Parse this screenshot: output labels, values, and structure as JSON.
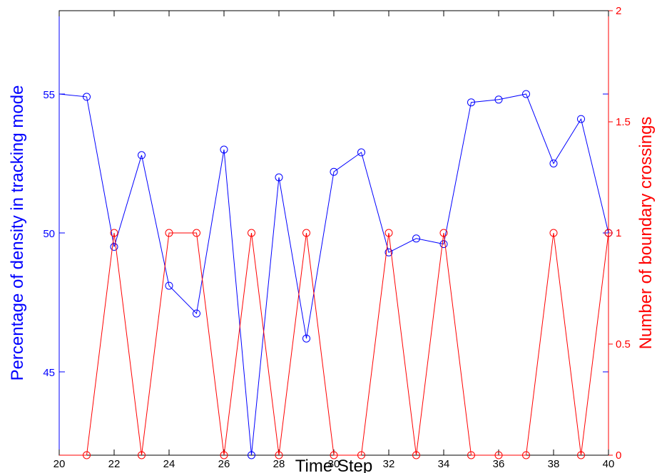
{
  "chart_data": {
    "type": "line",
    "xlabel": "Time Step",
    "xlim": [
      20,
      40
    ],
    "xticks": [
      20,
      22,
      24,
      26,
      28,
      30,
      32,
      34,
      36,
      38,
      40
    ],
    "left_axis": {
      "label": "Percentage of density in tracking mode",
      "color": "#0000ff",
      "ylim": [
        42,
        58
      ],
      "ticks": [
        45,
        50,
        55
      ]
    },
    "right_axis": {
      "label": "Number of boundary crossings",
      "color": "#ff0000",
      "ylim": [
        0,
        2
      ],
      "ticks": [
        0,
        0.5,
        1,
        1.5,
        2
      ]
    },
    "x": [
      20,
      21,
      22,
      23,
      24,
      25,
      26,
      27,
      28,
      29,
      30,
      31,
      32,
      33,
      34,
      35,
      36,
      37,
      38,
      39,
      40
    ],
    "series": [
      {
        "axis": "left",
        "color": "#0000ff",
        "marker": "circle",
        "marker_from_index": 1,
        "values": [
          55.0,
          54.9,
          49.5,
          52.8,
          48.1,
          47.1,
          53.0,
          42.0,
          52.0,
          46.2,
          52.2,
          52.9,
          49.3,
          49.8,
          49.6,
          54.7,
          54.8,
          55.0,
          52.5,
          54.1,
          50.0
        ]
      },
      {
        "axis": "right",
        "color": "#ff0000",
        "marker": "circle",
        "marker_from_index": 1,
        "values": [
          0,
          0,
          1,
          0,
          1,
          1,
          0,
          1,
          0,
          1,
          0,
          0,
          1,
          0,
          1,
          0,
          0,
          0,
          1,
          0,
          1
        ]
      }
    ],
    "grid": false
  }
}
